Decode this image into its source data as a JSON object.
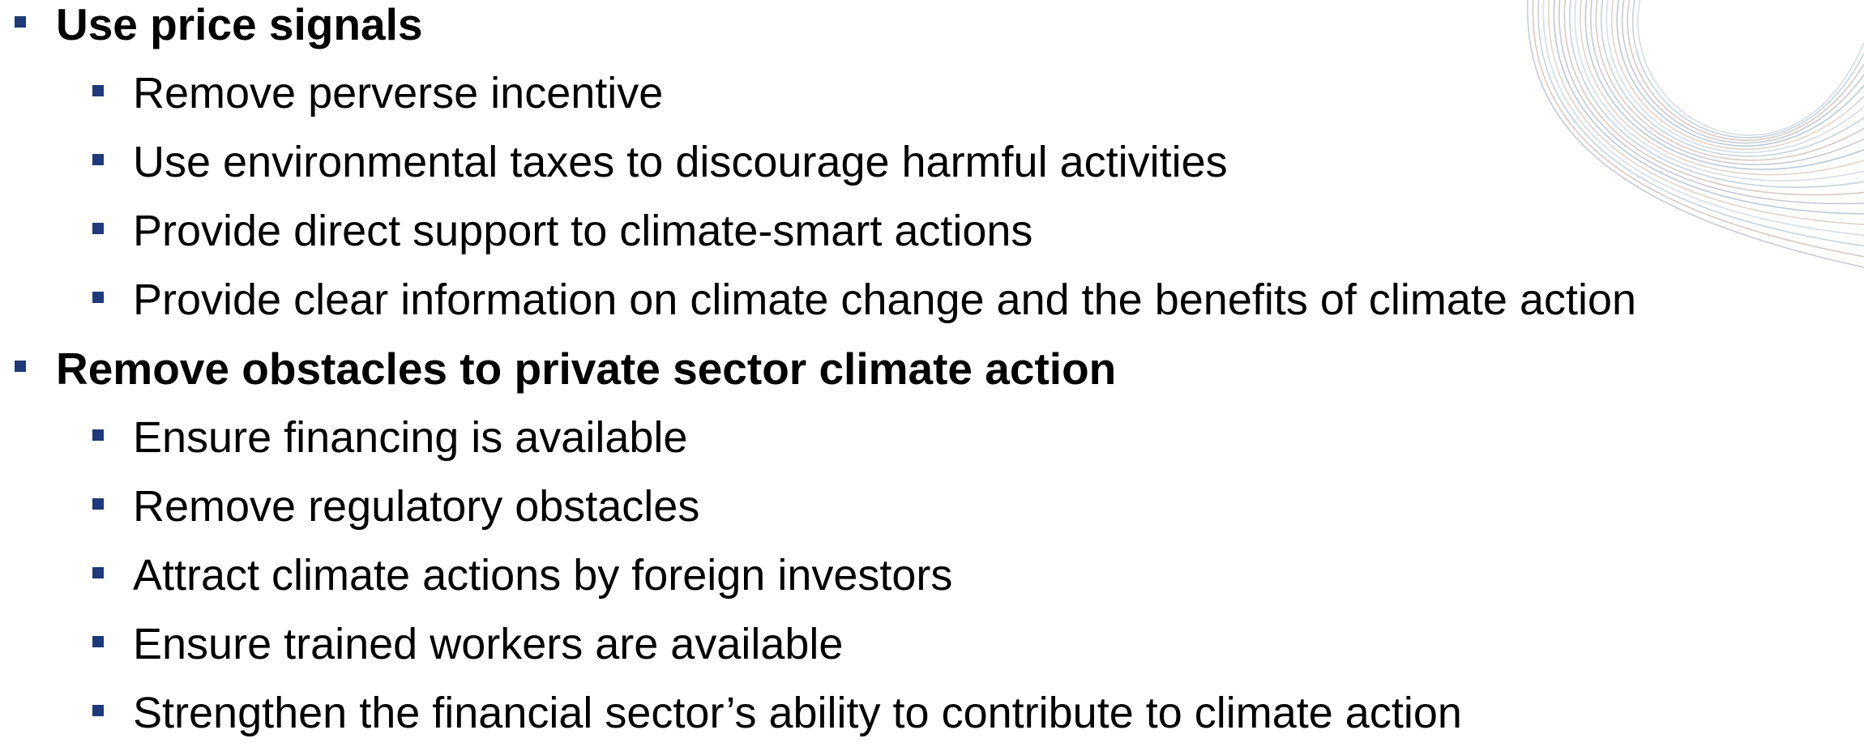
{
  "sections": [
    {
      "heading": "Use price signals",
      "items": [
        "Remove perverse incentive",
        "Use environmental taxes to discourage harmful activities",
        "Provide direct support to climate-smart actions",
        "Provide clear information on climate change and the benefits of climate action"
      ]
    },
    {
      "heading": "Remove obstacles to private sector climate action",
      "items": [
        "Ensure financing is available",
        "Remove regulatory obstacles",
        "Attract climate actions by foreign investors",
        "Ensure trained workers are available",
        "Strengthen the financial sector’s ability to contribute to climate action"
      ]
    }
  ]
}
